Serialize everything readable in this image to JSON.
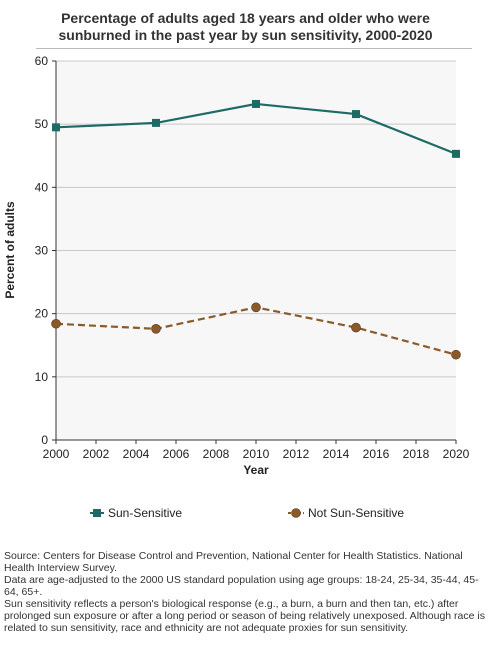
{
  "chart_data": {
    "type": "line",
    "title": "Percentage of adults aged 18 years and older who were sunburned in the past year by sun sensitivity, 2000-2020",
    "title_lines": [
      "Percentage of adults aged 18 years and older who were",
      "sunburned in the past year by sun sensitivity, 2000-2020"
    ],
    "xlabel": "Year",
    "ylabel": "Percent of adults",
    "xlim": [
      2000,
      2020
    ],
    "ylim": [
      0,
      60
    ],
    "x_ticks": [
      2000,
      2002,
      2004,
      2006,
      2008,
      2010,
      2012,
      2014,
      2016,
      2018,
      2020
    ],
    "y_ticks": [
      0,
      10,
      20,
      30,
      40,
      50,
      60
    ],
    "grid": "horizontal",
    "legend_position": "bottom",
    "series": [
      {
        "name": "Sun-Sensitive",
        "color": "#1e6b66",
        "marker": "square",
        "line_style": "solid",
        "x": [
          2000,
          2005,
          2010,
          2015,
          2020
        ],
        "values": [
          49.5,
          50.2,
          53.2,
          51.6,
          45.3
        ]
      },
      {
        "name": "Not Sun-Sensitive",
        "color": "#8b5a2b",
        "marker": "circle",
        "line_style": "dashed",
        "x": [
          2000,
          2005,
          2010,
          2015,
          2020
        ],
        "values": [
          18.4,
          17.6,
          21.0,
          17.8,
          13.5
        ]
      }
    ]
  },
  "footer": {
    "source": "Source: Centers for Disease Control and Prevention, National Center for Health Statistics. National Health Interview Survey.",
    "note1": "Data are age-adjusted to the 2000 US standard population using age groups: 18-24, 25-34, 35-44, 45-64, 65+.",
    "note2": "Sun sensitivity reflects a person's biological response (e.g., a burn, a burn and then tan, etc.) after prolonged sun exposure or after a long period or season of being relatively unexposed. Although race is related to sun sensitivity, race and ethnicity are not adequate proxies for sun sensitivity."
  }
}
